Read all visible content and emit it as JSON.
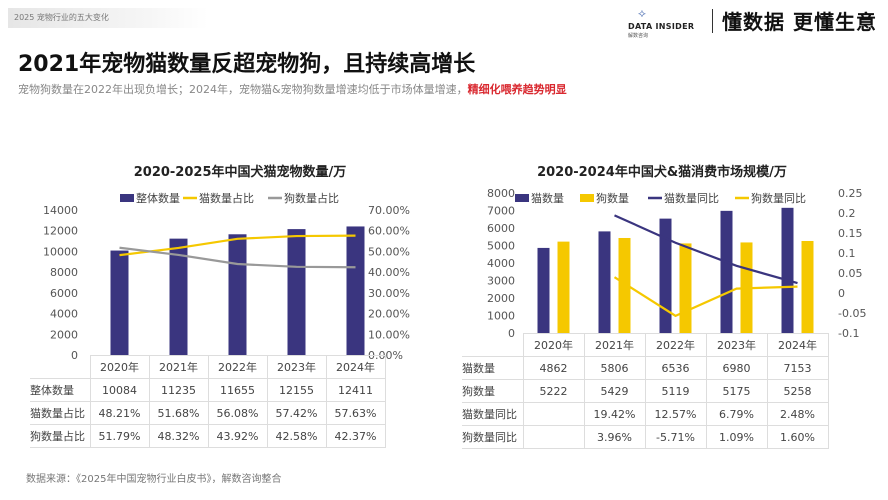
{
  "header": {
    "section": "2025 宠物行业的五大变化",
    "logo_text": "DATA INSIDER",
    "logo_sub": "解数咨询",
    "slogan": "懂数据 更懂生意"
  },
  "title": "2021年宠物猫数量反超宠物狗，且持续高增长",
  "subtitle": {
    "text": "宠物狗数量在2022年出现负增长；2024年，宠物猫&宠物狗数量增速均低于市场体量增速，",
    "highlight": "精细化喂养趋势明显"
  },
  "colors": {
    "navy": "#3a357f",
    "yellow": "#f5c800",
    "gray": "#999999",
    "highlight": "#d9282f"
  },
  "chart_data": [
    {
      "type": "bar+line",
      "title": "2020-2025年中国犬猫宠物数量/万",
      "categories": [
        "2020年",
        "2021年",
        "2022年",
        "2023年",
        "2024年"
      ],
      "ylim": [
        0,
        14000
      ],
      "yticks": [
        "0",
        "2000",
        "4000",
        "6000",
        "8000",
        "10000",
        "12000",
        "14000"
      ],
      "y2lim": [
        0,
        70
      ],
      "y2ticks": [
        "0.00%",
        "10.00%",
        "20.00%",
        "30.00%",
        "40.00%",
        "50.00%",
        "60.00%",
        "70.00%"
      ],
      "legend_position": "top",
      "series": [
        {
          "name": "整体数量",
          "kind": "bar",
          "axis": "left",
          "values": [
            10084,
            11235,
            11655,
            12155,
            12411
          ],
          "labels": [
            "10084",
            "11235",
            "11655",
            "12155",
            "12411"
          ]
        },
        {
          "name": "猫数量占比",
          "kind": "line",
          "axis": "right",
          "values": [
            48.21,
            51.68,
            56.08,
            57.42,
            57.63
          ],
          "labels": [
            "48.21%",
            "51.68%",
            "56.08%",
            "57.42%",
            "57.63%"
          ]
        },
        {
          "name": "狗数量占比",
          "kind": "line",
          "axis": "right",
          "values": [
            51.79,
            48.32,
            43.92,
            42.58,
            42.37
          ],
          "labels": [
            "51.79%",
            "48.32%",
            "43.92%",
            "42.58%",
            "42.37%"
          ]
        }
      ]
    },
    {
      "type": "bar+line",
      "title": "2020-2024年中国犬&猫消费市场规模/万",
      "categories": [
        "2020年",
        "2021年",
        "2022年",
        "2023年",
        "2024年"
      ],
      "ylim": [
        0,
        8000
      ],
      "yticks": [
        "0",
        "1000",
        "2000",
        "3000",
        "4000",
        "5000",
        "6000",
        "7000",
        "8000"
      ],
      "y2lim": [
        -0.1,
        0.25
      ],
      "y2ticks": [
        "-0.1",
        "-0.05",
        "0",
        "0.05",
        "0.1",
        "0.15",
        "0.2",
        "0.25"
      ],
      "legend_position": "top",
      "series": [
        {
          "name": "猫数量",
          "kind": "bar",
          "axis": "left",
          "values": [
            4862,
            5806,
            6536,
            6980,
            7153
          ],
          "labels": [
            "4862",
            "5806",
            "6536",
            "6980",
            "7153"
          ]
        },
        {
          "name": "狗数量",
          "kind": "bar",
          "axis": "left",
          "values": [
            5222,
            5429,
            5119,
            5175,
            5258
          ],
          "labels": [
            "5222",
            "5429",
            "5119",
            "5175",
            "5258"
          ]
        },
        {
          "name": "猫数量同比",
          "kind": "line",
          "axis": "right",
          "values": [
            null,
            0.1942,
            0.1257,
            0.0679,
            0.0248
          ],
          "labels": [
            "",
            "19.42%",
            "12.57%",
            "6.79%",
            "2.48%"
          ]
        },
        {
          "name": "狗数量同比",
          "kind": "line",
          "axis": "right",
          "values": [
            null,
            0.0396,
            -0.0571,
            0.0109,
            0.016
          ],
          "labels": [
            "",
            "3.96%",
            "-5.71%",
            "1.09%",
            "1.60%"
          ]
        }
      ]
    }
  ],
  "footer": "数据来源：《2025年中国宠物行业白皮书》，解数咨询整合"
}
